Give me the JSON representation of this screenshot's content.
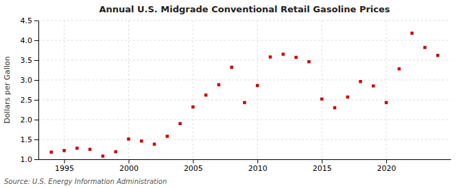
{
  "chart_data": {
    "type": "scatter",
    "title": "Annual U.S. Midgrade Conventional Retail Gasoline Prices",
    "ylabel": "Dollars per Gallon",
    "annotations": [
      "Source: U.S. Energy Information Administration"
    ],
    "x": [
      1994,
      1995,
      1996,
      1997,
      1998,
      1999,
      2000,
      2001,
      2002,
      2003,
      2004,
      2005,
      2006,
      2007,
      2008,
      2009,
      2010,
      2011,
      2012,
      2013,
      2014,
      2015,
      2016,
      2017,
      2018,
      2019,
      2020,
      2021,
      2022,
      2023,
      2024
    ],
    "values": [
      1.18,
      1.22,
      1.28,
      1.25,
      1.08,
      1.19,
      1.51,
      1.46,
      1.38,
      1.58,
      1.9,
      2.32,
      2.62,
      2.88,
      3.32,
      2.43,
      2.86,
      3.58,
      3.65,
      3.57,
      3.46,
      2.52,
      2.3,
      2.57,
      2.96,
      2.85,
      2.43,
      3.28,
      4.18,
      3.82,
      3.62
    ],
    "color": "#cc0000",
    "marker": "square",
    "xlim": [
      1993.0,
      2025.0
    ],
    "xticks": [
      1995,
      2000,
      2005,
      2010,
      2015,
      2020
    ],
    "ylim": [
      1.0,
      4.5
    ],
    "yticks": [
      {
        "value": 1.0,
        "label": "1.0"
      },
      1.5,
      {
        "value": 2.0,
        "label": "2.0"
      },
      2.5,
      {
        "value": 3.0,
        "label": "3.0"
      },
      3.5,
      {
        "value": 4.0,
        "label": "4.0"
      },
      4.5
    ],
    "grid": true
  }
}
